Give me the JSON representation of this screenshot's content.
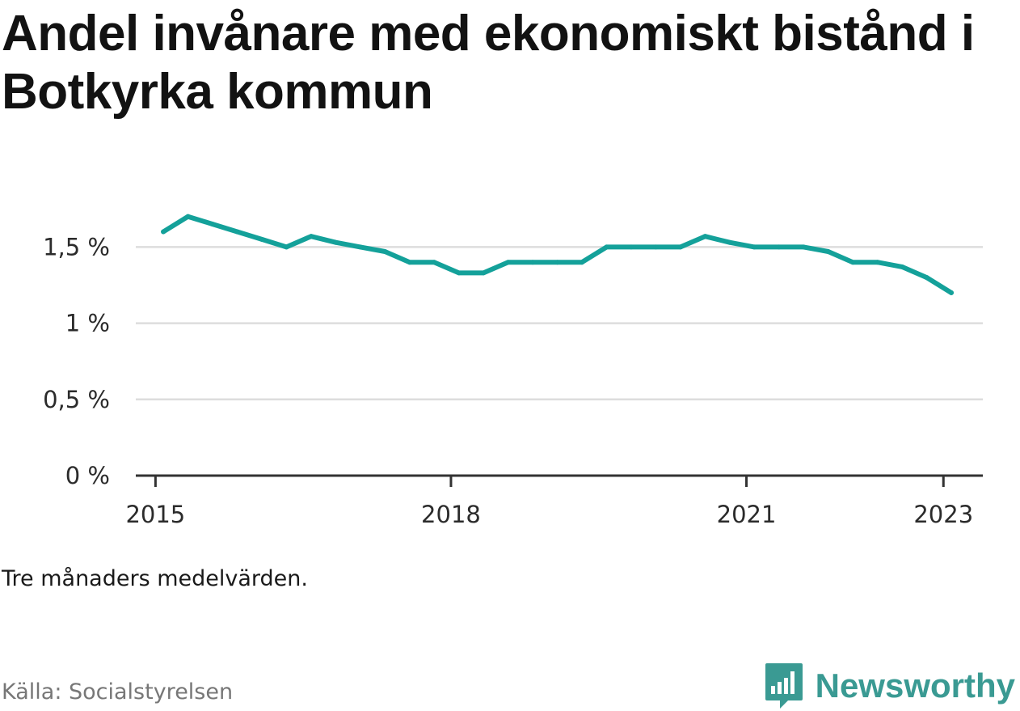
{
  "title": "Andel invånare med ekonomiskt bistånd i Botkyrka kommun",
  "note": "Tre månaders medelvärden.",
  "source": "Källa: Socialstyrelsen",
  "brand": {
    "name": "Newsworthy",
    "color": "#3a9a93"
  },
  "colors": {
    "line": "#14a19a",
    "grid": "#dddddd",
    "axis": "#333333"
  },
  "chart_data": {
    "type": "line",
    "title": "Andel invånare med ekonomiskt bistånd i Botkyrka kommun",
    "xlabel": "",
    "ylabel": "",
    "ylim": [
      0,
      1.9
    ],
    "xlim": [
      2014.8,
      2023.4
    ],
    "grid": true,
    "y_ticks": [
      {
        "value": 0,
        "label": "0 %"
      },
      {
        "value": 0.5,
        "label": "0,5 %"
      },
      {
        "value": 1,
        "label": "1 %"
      },
      {
        "value": 1.5,
        "label": "1,5 %"
      }
    ],
    "x_ticks": [
      {
        "value": 2015,
        "label": "2015"
      },
      {
        "value": 2018,
        "label": "2018"
      },
      {
        "value": 2021,
        "label": "2021"
      },
      {
        "value": 2023,
        "label": "2023"
      }
    ],
    "series": [
      {
        "x": [
          2015.08,
          2015.33,
          2015.58,
          2015.83,
          2016.08,
          2016.33,
          2016.58,
          2016.83,
          2017.08,
          2017.33,
          2017.58,
          2017.83,
          2018.08,
          2018.33,
          2018.58,
          2018.83,
          2019.08,
          2019.33,
          2019.58,
          2019.83,
          2020.08,
          2020.33,
          2020.58,
          2020.83,
          2021.08,
          2021.33,
          2021.58,
          2021.83,
          2022.08,
          2022.33,
          2022.58,
          2022.83,
          2023.08
        ],
        "values": [
          1.6,
          1.7,
          1.65,
          1.6,
          1.55,
          1.5,
          1.57,
          1.53,
          1.5,
          1.47,
          1.4,
          1.4,
          1.33,
          1.33,
          1.4,
          1.4,
          1.4,
          1.4,
          1.5,
          1.5,
          1.5,
          1.5,
          1.57,
          1.53,
          1.5,
          1.5,
          1.5,
          1.47,
          1.4,
          1.4,
          1.37,
          1.3,
          1.2
        ]
      }
    ]
  }
}
